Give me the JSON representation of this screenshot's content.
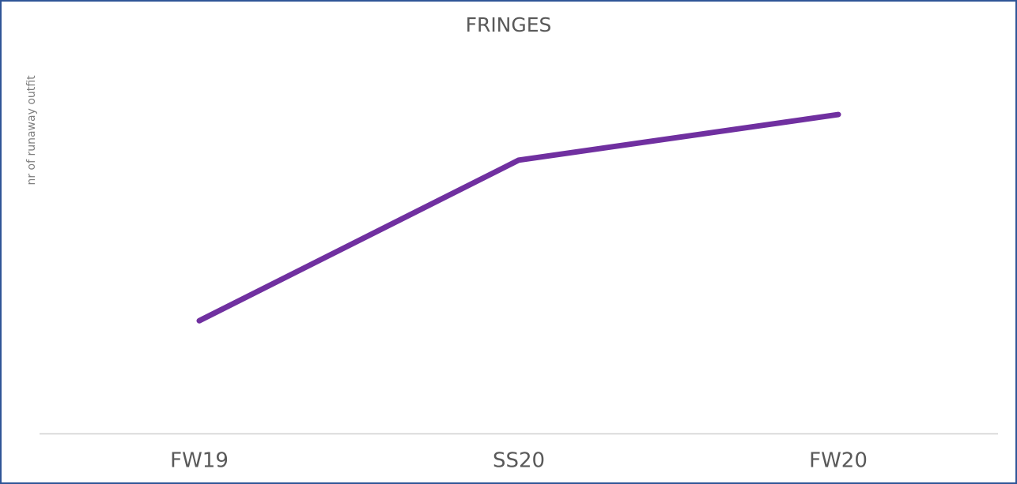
{
  "chart_data": {
    "type": "line",
    "title": "FRINGES",
    "y_label": "nr of runaway outfit",
    "categories": [
      "FW19",
      "SS20",
      "FW20"
    ],
    "series": [
      {
        "name": "Fringes",
        "color": "#7030a0",
        "values": [
          29.2,
          70.8,
          82.6
        ]
      }
    ],
    "ylim": [
      0,
      100
    ]
  }
}
